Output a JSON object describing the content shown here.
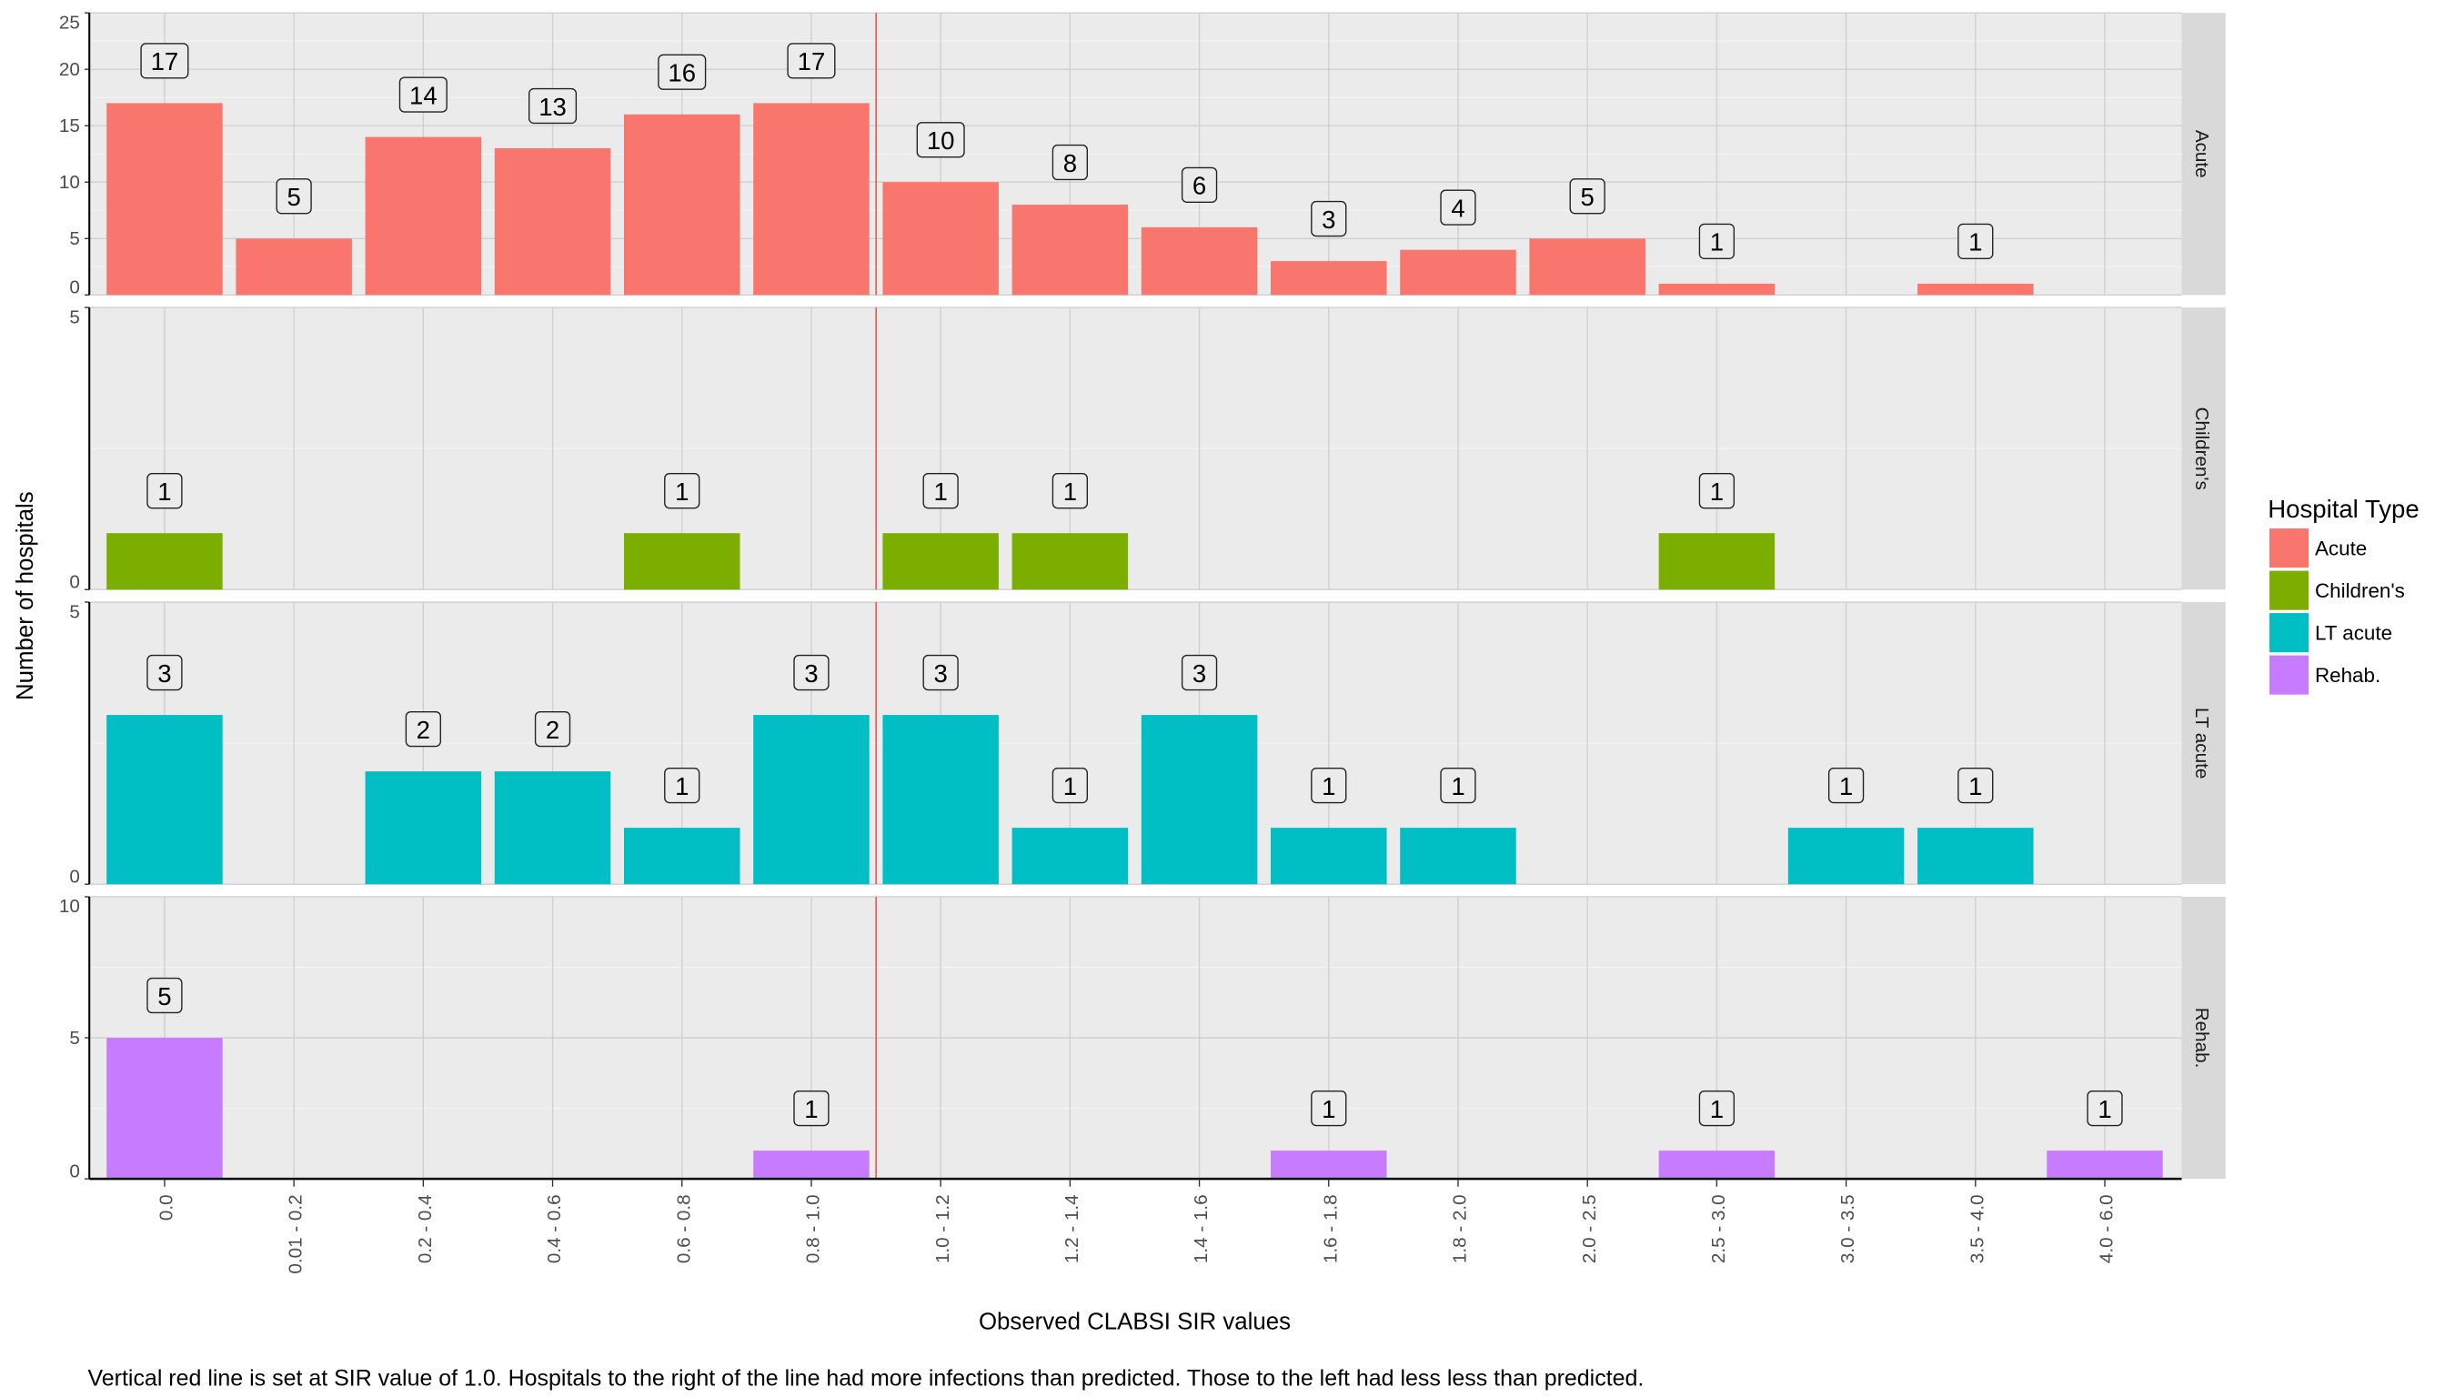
{
  "chart_data": {
    "type": "bar",
    "layout": "faceted-rows",
    "categories": [
      "0.0",
      "0.01 - 0.2",
      "0.2 - 0.4",
      "0.4 - 0.6",
      "0.6 - 0.8",
      "0.8 - 1.0",
      "1.0 - 1.2",
      "1.2 - 1.4",
      "1.4 - 1.6",
      "1.6 - 1.8",
      "1.8 - 2.0",
      "2.0 - 2.5",
      "2.5 - 3.0",
      "3.0 - 3.5",
      "3.5 - 4.0",
      "4.0 - 6.0"
    ],
    "xlabel": "Observed CLABSI SIR values",
    "ylabel": "Number of hospitals",
    "caption": "Vertical red line is set at SIR value of 1.0.  Hospitals to the right of the line had more infections than predicted.  Those to the left had less less than predicted.",
    "reference_line": {
      "position": "between 0.8 - 1.0 and 1.0 - 1.2",
      "color": "#e0605a"
    },
    "grid": true,
    "data_labels": true,
    "legend": {
      "title": "Hospital Type",
      "placement": "right",
      "entries": [
        "Acute",
        "Children's",
        "LT acute",
        "Rehab."
      ]
    },
    "series": [
      {
        "name": "Acute",
        "color": "#F8766D",
        "ylim": [
          0,
          25
        ],
        "yticks": [
          0,
          5,
          10,
          15,
          20,
          25
        ],
        "values": [
          17,
          5,
          14,
          13,
          16,
          17,
          10,
          8,
          6,
          3,
          4,
          5,
          1,
          0,
          1,
          0
        ]
      },
      {
        "name": "Children's",
        "color": "#7CAE00",
        "ylim": [
          0,
          5
        ],
        "yticks": [
          0,
          5
        ],
        "values": [
          1,
          0,
          0,
          0,
          1,
          0,
          1,
          1,
          0,
          0,
          0,
          0,
          1,
          0,
          0,
          0
        ]
      },
      {
        "name": "LT acute",
        "color": "#00BFC4",
        "ylim": [
          0,
          5
        ],
        "yticks": [
          0,
          5
        ],
        "values": [
          3,
          0,
          2,
          2,
          1,
          3,
          3,
          1,
          3,
          1,
          1,
          0,
          0,
          1,
          1,
          0
        ]
      },
      {
        "name": "Rehab.",
        "color": "#C77CFF",
        "ylim": [
          0,
          10
        ],
        "yticks": [
          0,
          5,
          10
        ],
        "values": [
          5,
          0,
          0,
          0,
          0,
          1,
          0,
          0,
          0,
          1,
          0,
          0,
          1,
          0,
          0,
          1
        ]
      }
    ]
  }
}
